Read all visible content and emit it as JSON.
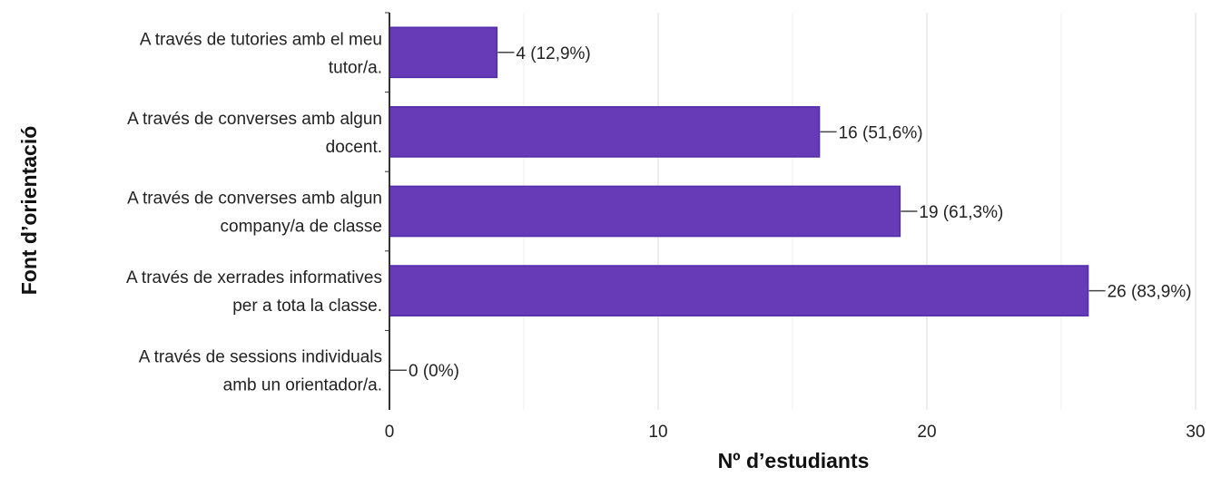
{
  "chart_data": {
    "type": "bar",
    "orientation": "horizontal",
    "categories": [
      [
        "A través de tutories amb el meu",
        "tutor/a."
      ],
      [
        "A través de converses amb algun",
        "docent."
      ],
      [
        "A través de converses amb algun",
        "company/a de classe"
      ],
      [
        "A través de xerrades informatives",
        "per a tota la classe."
      ],
      [
        "A través de sessions individuals",
        "amb un orientador/a."
      ]
    ],
    "values": [
      4,
      16,
      19,
      26,
      0
    ],
    "data_labels": [
      "4 (12,9%)",
      "16 (51,6%)",
      "19 (61,3%)",
      "26 (83,9%)",
      "0 (0%)"
    ],
    "xlim": [
      0,
      30
    ],
    "xticks": [
      0,
      10,
      20,
      30
    ],
    "xlabel": "Nº d’estudiants",
    "ylabel": "Font d’orientació",
    "grid": true,
    "bar_color": "#673ab7",
    "bar_border_color": "#512da8"
  }
}
